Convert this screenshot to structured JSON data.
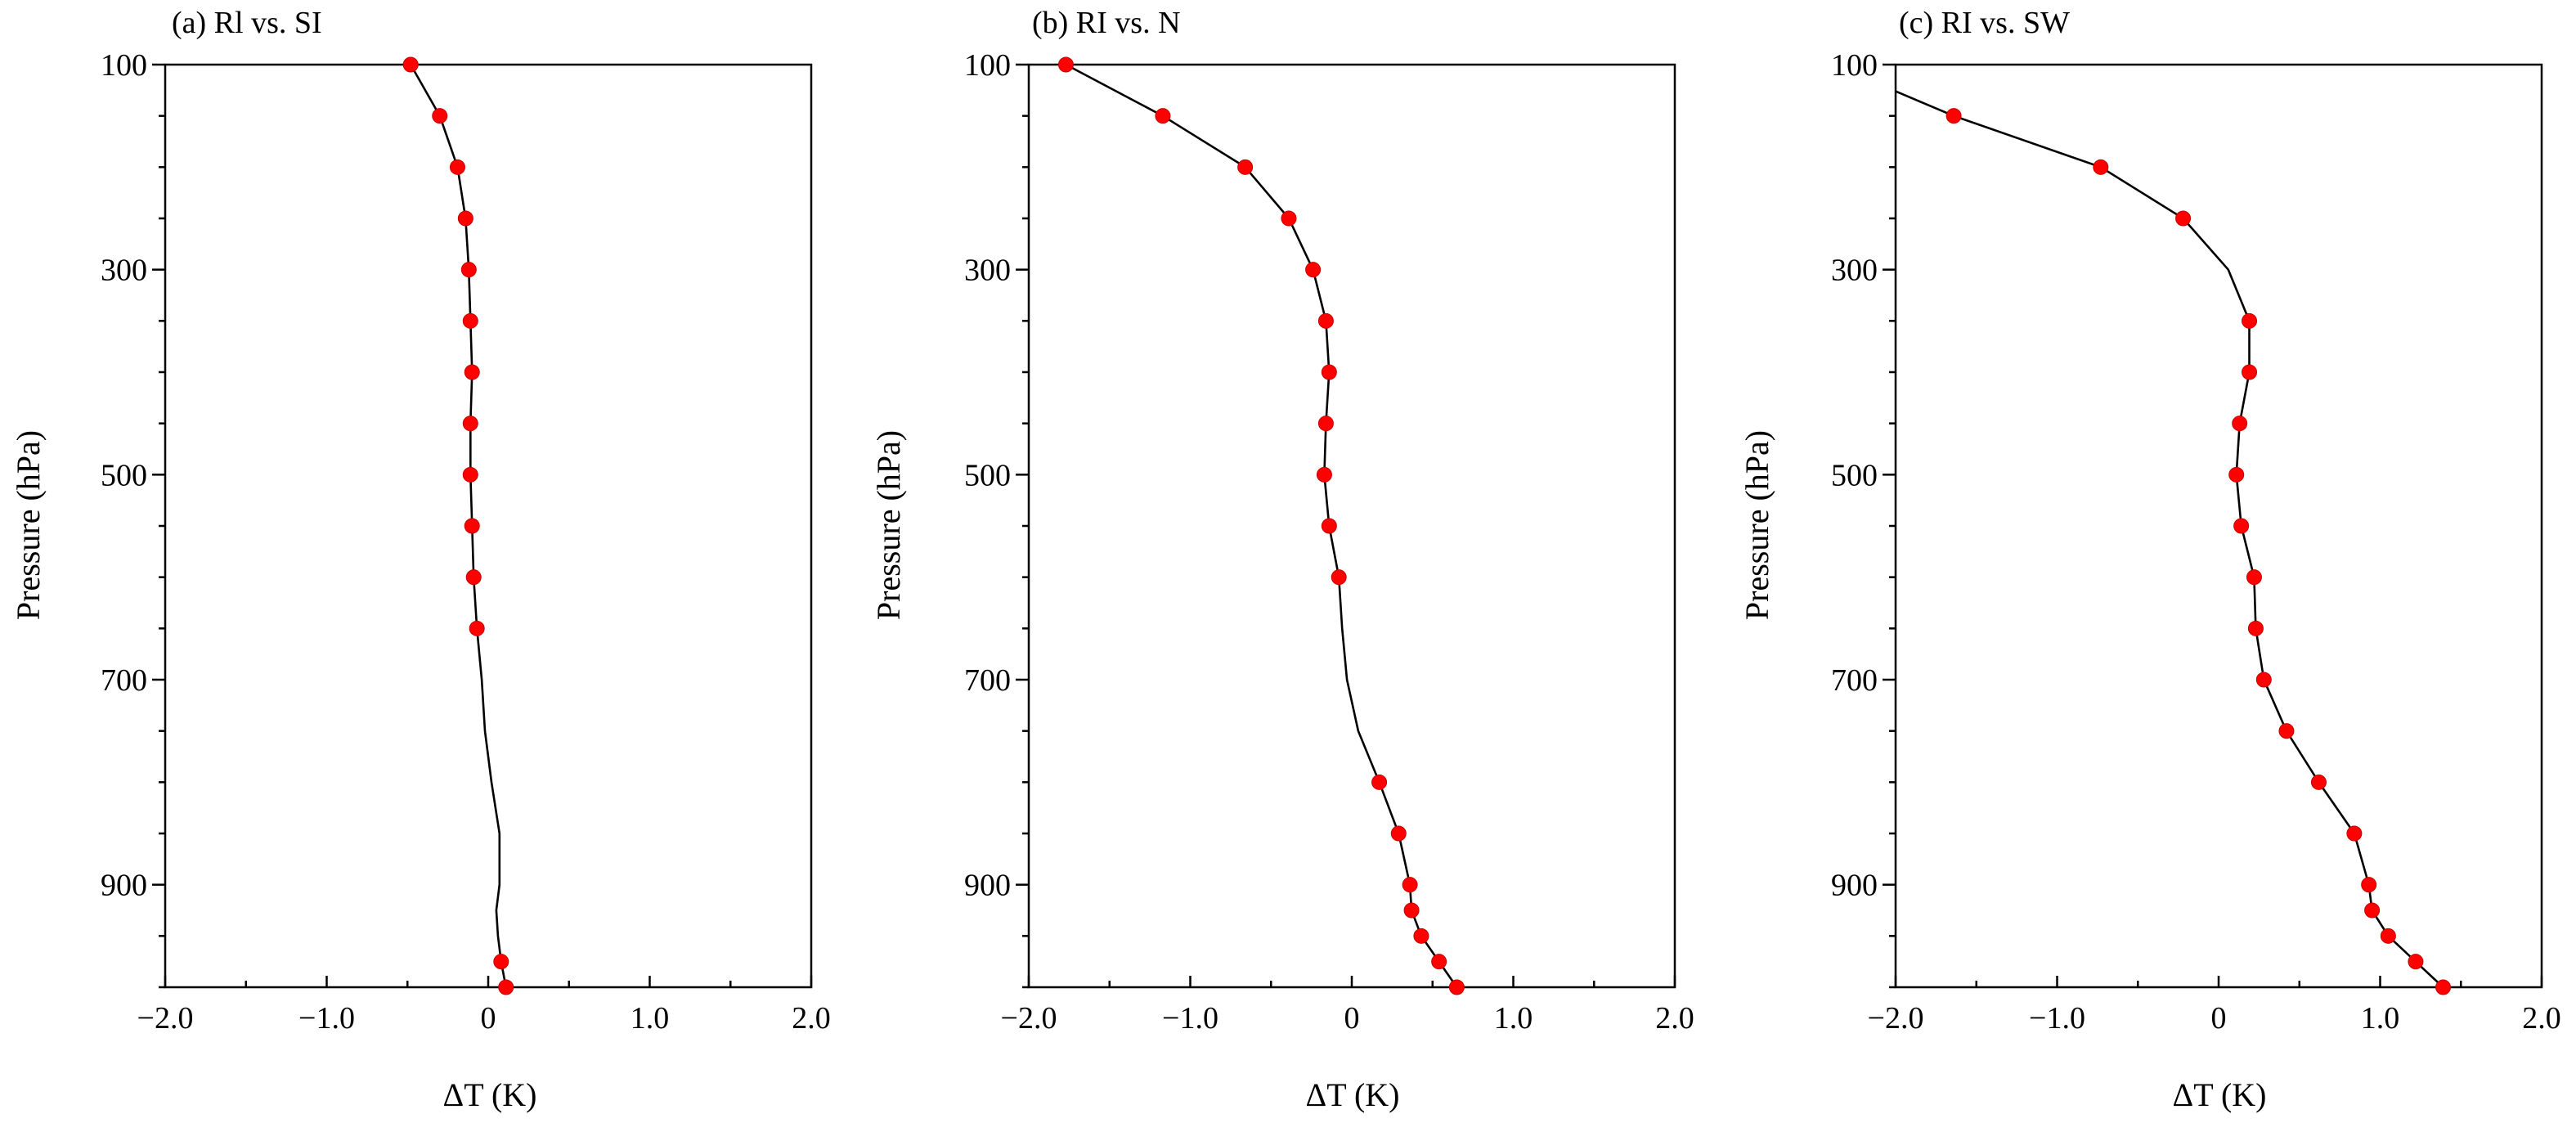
{
  "chart_data": [
    {
      "type": "line",
      "title": "(a) Rl vs. SI",
      "xlabel": "ΔT (K)",
      "ylabel": "Pressure (hPa)",
      "xlim": [
        -2.0,
        2.0
      ],
      "ylim": [
        1000,
        100
      ],
      "x_ticks": [
        "−2.0",
        "−1.0",
        "0",
        "1.0",
        "2.0"
      ],
      "y_ticks": [
        "100",
        "300",
        "500",
        "700",
        "900"
      ],
      "series": [
        {
          "line": {
            "pressure": [
              100,
              150,
              200,
              250,
              300,
              350,
              400,
              450,
              500,
              550,
              600,
              650,
              700,
              750,
              800,
              850,
              900,
              925,
              950,
              975,
              1000
            ],
            "dT": [
              -0.48,
              -0.3,
              -0.19,
              -0.14,
              -0.12,
              -0.11,
              -0.1,
              -0.11,
              -0.11,
              -0.1,
              -0.09,
              -0.07,
              -0.04,
              -0.02,
              0.02,
              0.07,
              0.07,
              0.05,
              0.06,
              0.08,
              0.11
            ]
          },
          "markers": {
            "pressure": [
              100,
              150,
              200,
              250,
              300,
              350,
              400,
              450,
              500,
              550,
              600,
              650,
              975,
              1000
            ],
            "dT": [
              -0.48,
              -0.3,
              -0.19,
              -0.14,
              -0.12,
              -0.11,
              -0.1,
              -0.11,
              -0.11,
              -0.1,
              -0.09,
              -0.07,
              0.08,
              0.11
            ]
          }
        }
      ]
    },
    {
      "type": "line",
      "title": "(b) RI vs. N",
      "xlabel": "ΔT (K)",
      "ylabel": "Pressure (hPa)",
      "xlim": [
        -2.0,
        2.0
      ],
      "ylim": [
        1000,
        100
      ],
      "x_ticks": [
        "−2.0",
        "−1.0",
        "0",
        "1.0",
        "2.0"
      ],
      "y_ticks": [
        "100",
        "300",
        "500",
        "700",
        "900"
      ],
      "series": [
        {
          "line": {
            "pressure": [
              100,
              150,
              200,
              250,
              300,
              350,
              400,
              450,
              500,
              550,
              600,
              650,
              700,
              750,
              800,
              850,
              900,
              925,
              950,
              975,
              1000
            ],
            "dT": [
              -1.77,
              -1.17,
              -0.66,
              -0.39,
              -0.24,
              -0.16,
              -0.14,
              -0.16,
              -0.17,
              -0.14,
              -0.08,
              -0.06,
              -0.03,
              0.04,
              0.17,
              0.29,
              0.36,
              0.37,
              0.43,
              0.54,
              0.65
            ]
          },
          "markers": {
            "pressure": [
              100,
              150,
              200,
              250,
              300,
              350,
              400,
              450,
              500,
              550,
              600,
              800,
              850,
              900,
              925,
              950,
              975,
              1000
            ],
            "dT": [
              -1.77,
              -1.17,
              -0.66,
              -0.39,
              -0.24,
              -0.16,
              -0.14,
              -0.16,
              -0.17,
              -0.14,
              -0.08,
              0.17,
              0.29,
              0.36,
              0.37,
              0.43,
              0.54,
              0.65
            ]
          }
        }
      ]
    },
    {
      "type": "line",
      "title": "(c) RI vs. SW",
      "xlabel": "ΔT (K)",
      "ylabel": "Pressure (hPa)",
      "xlim": [
        -2.0,
        2.0
      ],
      "ylim": [
        1000,
        100
      ],
      "x_ticks": [
        "−2.0",
        "−1.0",
        "0",
        "1.0",
        "2.0"
      ],
      "y_ticks": [
        "100",
        "300",
        "500",
        "700",
        "900"
      ],
      "series": [
        {
          "line": {
            "pressure": [
              126,
              150,
              200,
              250,
              300,
              350,
              400,
              450,
              500,
              550,
              600,
              650,
              700,
              750,
              800,
              850,
              900,
              925,
              950,
              975,
              1000
            ],
            "dT": [
              -2.0,
              -1.64,
              -0.73,
              -0.22,
              0.06,
              0.19,
              0.19,
              0.13,
              0.11,
              0.14,
              0.22,
              0.23,
              0.28,
              0.42,
              0.62,
              0.84,
              0.93,
              0.95,
              1.05,
              1.22,
              1.39
            ]
          },
          "markers": {
            "pressure": [
              150,
              200,
              250,
              350,
              400,
              450,
              500,
              550,
              600,
              650,
              700,
              750,
              800,
              850,
              900,
              925,
              950,
              975,
              1000
            ],
            "dT": [
              -1.64,
              -0.73,
              -0.22,
              0.19,
              0.19,
              0.13,
              0.11,
              0.14,
              0.22,
              0.23,
              0.28,
              0.42,
              0.62,
              0.84,
              0.93,
              0.95,
              1.05,
              1.22,
              1.39
            ]
          }
        }
      ]
    }
  ]
}
